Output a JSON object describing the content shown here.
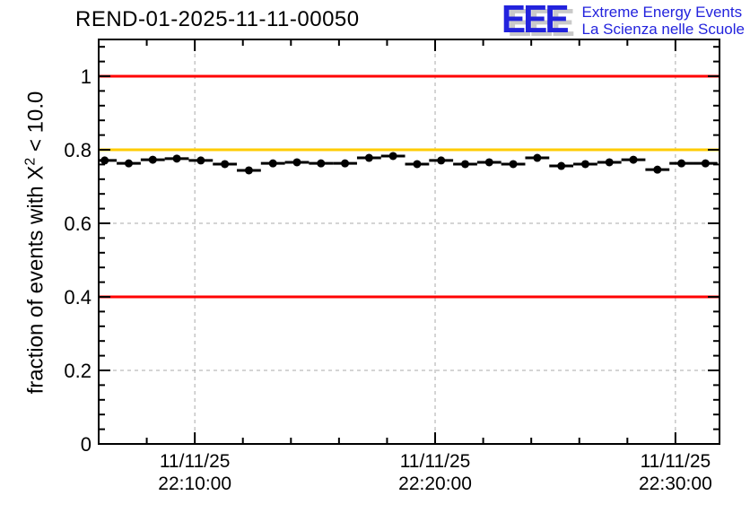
{
  "header": {
    "logo": {
      "monogram": "EEE",
      "line1": "Extreme Energy Events",
      "line2": "La Scienza nelle Scuole",
      "color": "#2323dd",
      "shadow_color": "#c9c9c9"
    }
  },
  "chart_data": {
    "type": "scatter",
    "title": "REND-01-2025-11-11-00050",
    "ylabel": {
      "pre": "fraction of events with X",
      "sup": "2",
      "post": " < 10.0"
    },
    "xlabel": "",
    "ylim": [
      0,
      1.1
    ],
    "grid": true,
    "grid_color": "#aaaaaa",
    "frame_color": "#000000",
    "x_axis": {
      "start": "22:06:00",
      "end": "22:31:50",
      "minor_step_seconds": 120,
      "ticks": [
        {
          "time": "22:10:00",
          "label_line1": "11/11/25",
          "label_line2": "22:10:00"
        },
        {
          "time": "22:20:00",
          "label_line1": "11/11/25",
          "label_line2": "22:20:00"
        },
        {
          "time": "22:30:00",
          "label_line1": "11/11/25",
          "label_line2": "22:30:00"
        }
      ]
    },
    "y_axis": {
      "minor_step": 0.04,
      "ticks": [
        {
          "value": 0,
          "label": "0"
        },
        {
          "value": 0.2,
          "label": "0.2"
        },
        {
          "value": 0.4,
          "label": "0.4"
        },
        {
          "value": 0.6,
          "label": "0.6"
        },
        {
          "value": 0.8,
          "label": "0.8"
        },
        {
          "value": 1.0,
          "label": "1"
        }
      ]
    },
    "reference_lines": [
      {
        "y": 1.0,
        "color": "#ff0000",
        "name": "upper-limit"
      },
      {
        "y": 0.8,
        "color": "#ffcc00",
        "name": "warning-level"
      },
      {
        "y": 0.4,
        "color": "#ff0000",
        "name": "lower-limit"
      }
    ],
    "series": [
      {
        "name": "fraction-of-events",
        "marker": "filled-circle",
        "color": "#000000",
        "bin_halfwidth_seconds": 30,
        "y_error": 0.008,
        "points": [
          {
            "time": "22:06:15",
            "value": 0.771
          },
          {
            "time": "22:07:15",
            "value": 0.763
          },
          {
            "time": "22:08:15",
            "value": 0.773
          },
          {
            "time": "22:09:15",
            "value": 0.776
          },
          {
            "time": "22:10:15",
            "value": 0.771
          },
          {
            "time": "22:11:15",
            "value": 0.761
          },
          {
            "time": "22:12:15",
            "value": 0.744
          },
          {
            "time": "22:13:15",
            "value": 0.763
          },
          {
            "time": "22:14:15",
            "value": 0.766
          },
          {
            "time": "22:15:15",
            "value": 0.763
          },
          {
            "time": "22:16:15",
            "value": 0.763
          },
          {
            "time": "22:17:15",
            "value": 0.778
          },
          {
            "time": "22:18:15",
            "value": 0.783
          },
          {
            "time": "22:19:15",
            "value": 0.761
          },
          {
            "time": "22:20:15",
            "value": 0.771
          },
          {
            "time": "22:21:15",
            "value": 0.761
          },
          {
            "time": "22:22:15",
            "value": 0.766
          },
          {
            "time": "22:23:15",
            "value": 0.761
          },
          {
            "time": "22:24:15",
            "value": 0.778
          },
          {
            "time": "22:25:15",
            "value": 0.756
          },
          {
            "time": "22:26:15",
            "value": 0.761
          },
          {
            "time": "22:27:15",
            "value": 0.766
          },
          {
            "time": "22:28:15",
            "value": 0.773
          },
          {
            "time": "22:29:15",
            "value": 0.746
          },
          {
            "time": "22:30:15",
            "value": 0.763
          },
          {
            "time": "22:31:15",
            "value": 0.763
          }
        ]
      }
    ]
  }
}
